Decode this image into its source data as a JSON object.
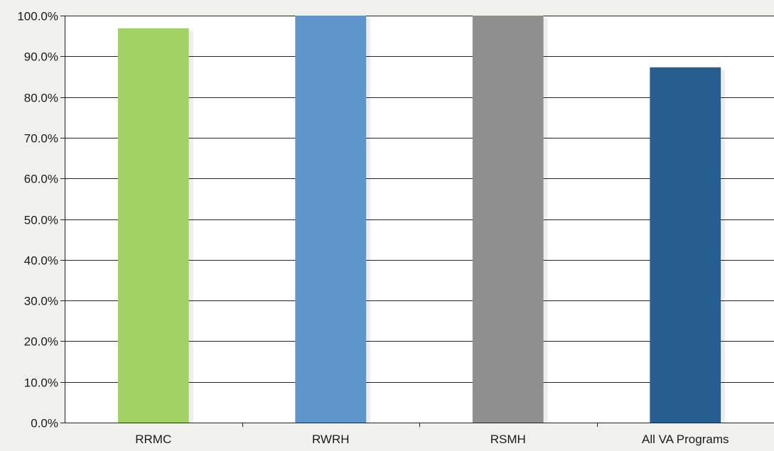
{
  "chart_data": {
    "type": "bar",
    "categories": [
      "RRMC",
      "RWRH",
      "RSMH",
      "All VA Programs"
    ],
    "values": [
      96.9,
      100.0,
      100.0,
      87.3
    ],
    "bar_colors": [
      "#a2d164",
      "#5f95cb",
      "#8f8f8f",
      "#275d8f"
    ],
    "ylim": [
      0,
      100
    ],
    "yticks": [
      0,
      10,
      20,
      30,
      40,
      50,
      60,
      70,
      80,
      90,
      100
    ],
    "ytick_labels": [
      "0.0%",
      "10.0%",
      "20.0%",
      "30.0%",
      "40.0%",
      "50.0%",
      "60.0%",
      "70.0%",
      "80.0%",
      "90.0%",
      "100.0%"
    ],
    "grid": true,
    "legend": "none"
  },
  "colors": {
    "background": "#f0f0ec",
    "plot_background": "#ffffff",
    "gridline": "#222222"
  }
}
